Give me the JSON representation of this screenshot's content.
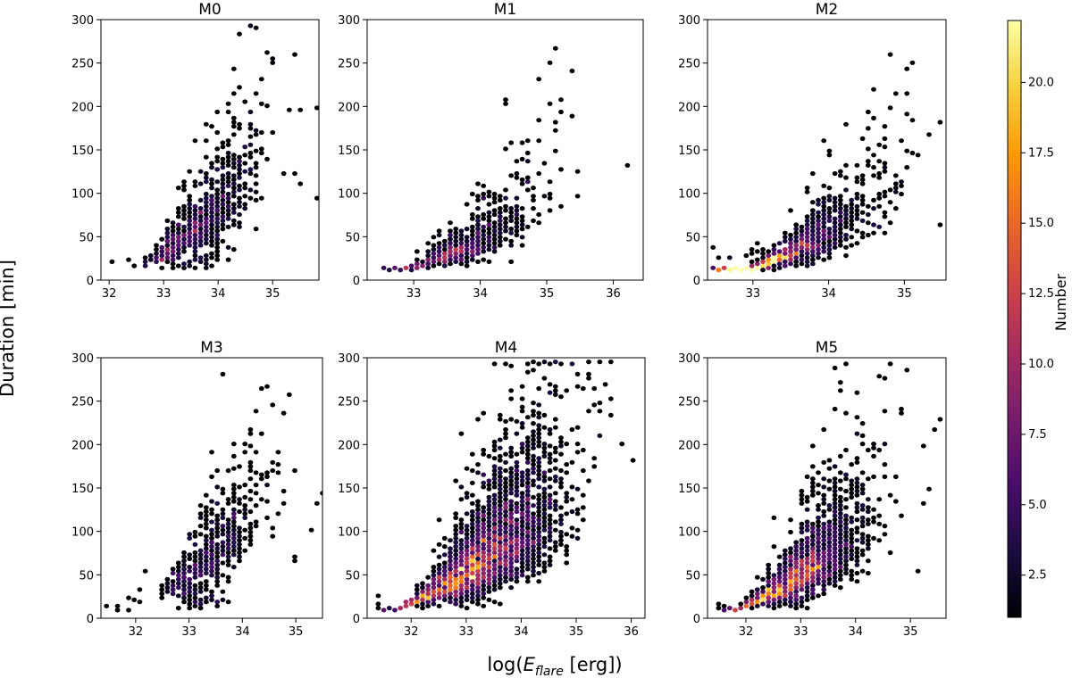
{
  "figure": {
    "xlabel_prefix": "log(",
    "xlabel_var": "E",
    "xlabel_sub": "flare",
    "xlabel_suffix": " [erg])",
    "ylabel": "Duration [min]",
    "colorbar_label": "Number",
    "colorbar_range": [
      1,
      22.2
    ],
    "colorbar_ticks": [
      "2.5",
      "5.0",
      "7.5",
      "10.0",
      "12.5",
      "15.0",
      "17.5",
      "20.0"
    ],
    "colormap": [
      "#000004",
      "#1b0c41",
      "#4a0c6b",
      "#781c6d",
      "#a52c60",
      "#cf4446",
      "#ed6925",
      "#fb9b06",
      "#f7d13d",
      "#fcffa4"
    ]
  },
  "chart_data": [
    {
      "type": "scatter",
      "title": "M0",
      "xlim": [
        31.85,
        35.85
      ],
      "ylim": [
        0,
        300
      ],
      "xticks": [
        32,
        33,
        34,
        35
      ],
      "yticks": [
        0,
        50,
        100,
        150,
        200,
        250,
        300
      ],
      "cloud": {
        "n": 650,
        "xc": 33.7,
        "xsd": 0.55,
        "xmin": 32.6,
        "xmax": 35.0,
        "base": 12,
        "slope": 38,
        "power": 1.4,
        "scatter": 0.38,
        "hot": [
          33.55,
          25
        ]
      },
      "points": [
        [
          35.45,
          260
        ],
        [
          34.95,
          255
        ],
        [
          34.75,
          232
        ],
        [
          35.78,
          200
        ],
        [
          35.55,
          195
        ],
        [
          35.3,
          195
        ],
        [
          35.8,
          95
        ],
        [
          32.1,
          20
        ],
        [
          32.4,
          25
        ],
        [
          32.5,
          18
        ],
        [
          35.2,
          125
        ],
        [
          35.4,
          125
        ],
        [
          35.5,
          110
        ]
      ]
    },
    {
      "type": "scatter",
      "title": "M1",
      "xlim": [
        32.3,
        36.45
      ],
      "ylim": [
        0,
        300
      ],
      "xticks": [
        33,
        34,
        35,
        36
      ],
      "yticks": [
        0,
        50,
        100,
        150,
        200,
        250,
        300
      ],
      "cloud": {
        "n": 520,
        "xc": 33.85,
        "xsd": 0.6,
        "xmin": 32.5,
        "xmax": 35.5,
        "base": 12,
        "slope": 30,
        "power": 1.45,
        "scatter": 0.42,
        "hot": [
          33.7,
          28
        ]
      },
      "points": [
        [
          35.12,
          265
        ],
        [
          35.02,
          252
        ],
        [
          34.85,
          233
        ],
        [
          34.35,
          205
        ],
        [
          35.2,
          195
        ],
        [
          36.2,
          130
        ],
        [
          35.5,
          125
        ],
        [
          34.7,
          160
        ]
      ]
    },
    {
      "type": "scatter",
      "title": "M2",
      "xlim": [
        32.4,
        35.55
      ],
      "ylim": [
        0,
        300
      ],
      "xticks": [
        33,
        34,
        35
      ],
      "yticks": [
        0,
        50,
        100,
        150,
        200,
        250,
        300
      ],
      "cloud": {
        "n": 950,
        "xc": 33.55,
        "xsd": 0.6,
        "xmin": 32.45,
        "xmax": 35.5,
        "base": 12,
        "slope": 42,
        "power": 1.35,
        "scatter": 0.42,
        "hot": [
          33.3,
          24
        ]
      },
      "points": [
        [
          34.85,
          260
        ],
        [
          35.1,
          252
        ],
        [
          34.6,
          220
        ],
        [
          34.9,
          215
        ],
        [
          34.55,
          195
        ],
        [
          35.0,
          192
        ],
        [
          35.1,
          185
        ],
        [
          35.5,
          180
        ],
        [
          33.9,
          160
        ],
        [
          35.3,
          170
        ],
        [
          35.45,
          62
        ]
      ]
    },
    {
      "type": "scatter",
      "title": "M3",
      "xlim": [
        31.35,
        35.5
      ],
      "ylim": [
        0,
        300
      ],
      "xticks": [
        32,
        33,
        34,
        35
      ],
      "yticks": [
        0,
        50,
        100,
        150,
        200,
        250,
        300
      ],
      "cloud": {
        "n": 460,
        "xc": 33.5,
        "xsd": 0.5,
        "xmin": 32.5,
        "xmax": 34.8,
        "base": 12,
        "slope": 35,
        "power": 1.4,
        "scatter": 0.35,
        "hot": [
          33.25,
          24
        ]
      },
      "points": [
        [
          34.88,
          258
        ],
        [
          34.65,
          175
        ],
        [
          34.95,
          170
        ],
        [
          35.45,
          143
        ],
        [
          35.35,
          130
        ],
        [
          34.8,
          145
        ],
        [
          35.25,
          100
        ],
        [
          35.0,
          72
        ],
        [
          34.95,
          65
        ],
        [
          31.5,
          15
        ],
        [
          31.65,
          8
        ],
        [
          31.7,
          15
        ],
        [
          31.85,
          22
        ],
        [
          31.95,
          20
        ],
        [
          32.05,
          35
        ],
        [
          32.2,
          52
        ],
        [
          31.9,
          10
        ],
        [
          32.1,
          18
        ]
      ]
    },
    {
      "type": "scatter",
      "title": "M4",
      "xlim": [
        31.2,
        36.25
      ],
      "ylim": [
        0,
        300
      ],
      "xticks": [
        32,
        33,
        34,
        35,
        36
      ],
      "yticks": [
        0,
        50,
        100,
        150,
        200,
        250,
        300
      ],
      "cloud": {
        "n": 2600,
        "xc": 33.4,
        "xsd": 0.7,
        "xmin": 31.4,
        "xmax": 35.9,
        "base": 11,
        "slope": 33,
        "power": 1.3,
        "scatter": 0.45,
        "hot": [
          32.95,
          22
        ]
      },
      "points": [
        [
          35.6,
          297
        ],
        [
          35.05,
          280
        ],
        [
          35.25,
          280
        ],
        [
          35.1,
          265
        ],
        [
          35.45,
          250
        ],
        [
          35.55,
          268
        ],
        [
          35.65,
          255
        ],
        [
          36.05,
          180
        ],
        [
          35.85,
          200
        ],
        [
          35.3,
          245
        ],
        [
          31.4,
          25
        ],
        [
          31.45,
          15
        ]
      ]
    },
    {
      "type": "scatter",
      "title": "M5",
      "xlim": [
        31.3,
        35.65
      ],
      "ylim": [
        0,
        300
      ],
      "xticks": [
        32,
        33,
        34,
        35
      ],
      "yticks": [
        0,
        50,
        100,
        150,
        200,
        250,
        300
      ],
      "cloud": {
        "n": 1500,
        "xc": 33.1,
        "xsd": 0.6,
        "xmin": 31.5,
        "xmax": 35.5,
        "base": 11,
        "slope": 34,
        "power": 1.35,
        "scatter": 0.45,
        "hot": [
          32.75,
          22
        ]
      },
      "points": [
        [
          34.6,
          292
        ],
        [
          34.95,
          288
        ],
        [
          34.45,
          280
        ],
        [
          34.55,
          275
        ],
        [
          35.5,
          230
        ],
        [
          35.45,
          215
        ],
        [
          35.25,
          200
        ],
        [
          34.05,
          258
        ],
        [
          34.85,
          242
        ],
        [
          35.3,
          150
        ],
        [
          35.15,
          55
        ],
        [
          31.5,
          15
        ],
        [
          31.6,
          15
        ]
      ]
    }
  ]
}
